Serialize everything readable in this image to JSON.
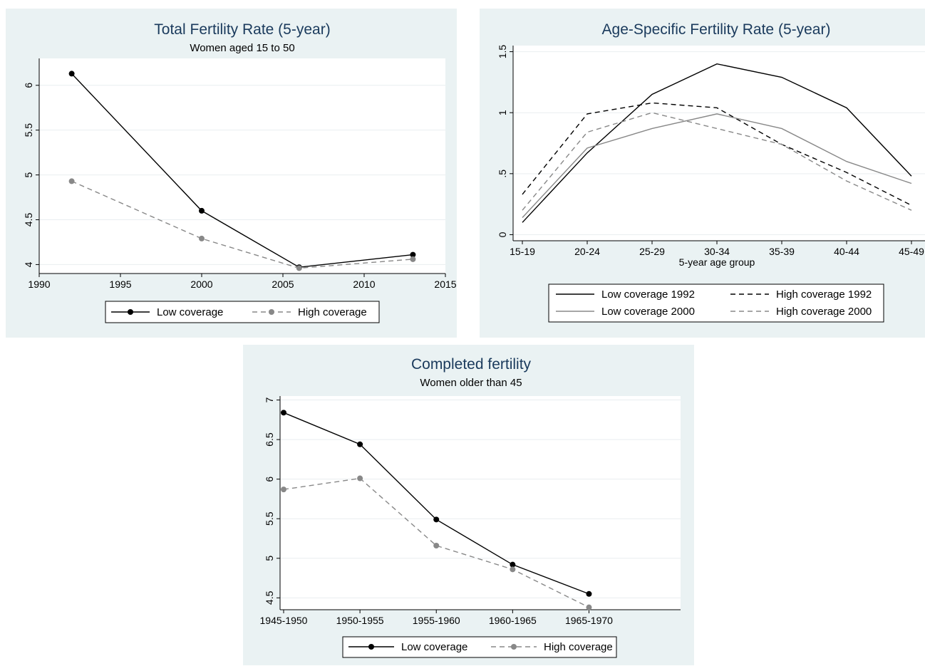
{
  "chart_data": [
    {
      "type": "line",
      "title": "Total Fertility Rate (5-year)",
      "subtitle": "Women aged 15 to 50",
      "xlabel": "",
      "ylabel": "",
      "xlim": [
        1990,
        2015
      ],
      "ylim": [
        3.9,
        6.3
      ],
      "xticks": [
        1990,
        1995,
        2000,
        2005,
        2010,
        2015
      ],
      "yticks": [
        4,
        4.5,
        5,
        5.5,
        6
      ],
      "ytick_labels": [
        "4",
        "4.5",
        "5",
        "5.5",
        "6"
      ],
      "grid": true,
      "legend_position": "bottom",
      "series": [
        {
          "name": "Low coverage",
          "x": [
            1992,
            2000,
            2006,
            2013
          ],
          "y": [
            6.13,
            4.6,
            3.97,
            4.11
          ],
          "color": "#000000",
          "dash": "solid",
          "markers": true
        },
        {
          "name": "High coverage",
          "x": [
            1992,
            2000,
            2006,
            2013
          ],
          "y": [
            4.93,
            4.29,
            3.96,
            4.06
          ],
          "color": "#888888",
          "dash": "dashed",
          "markers": true
        }
      ]
    },
    {
      "type": "line",
      "title": "Age-Specific Fertility Rate (5-year)",
      "subtitle": "",
      "xlabel": "5-year age group",
      "ylabel": "",
      "categories": [
        "15-19",
        "20-24",
        "25-29",
        "30-34",
        "35-39",
        "40-44",
        "45-49"
      ],
      "ylim": [
        -0.05,
        1.55
      ],
      "yticks": [
        0,
        0.5,
        1,
        1.5
      ],
      "ytick_labels": [
        "0",
        ".5",
        "1",
        "1.5"
      ],
      "grid": true,
      "legend_position": "bottom",
      "series": [
        {
          "name": "Low coverage 1992",
          "values": [
            0.1,
            0.67,
            1.15,
            1.4,
            1.29,
            1.04,
            0.48
          ],
          "color": "#000000",
          "dash": "solid"
        },
        {
          "name": "High coverage 1992",
          "values": [
            0.33,
            0.99,
            1.08,
            1.04,
            0.74,
            0.51,
            0.24
          ],
          "color": "#000000",
          "dash": "dashed"
        },
        {
          "name": "Low coverage 2000",
          "values": [
            0.14,
            0.71,
            0.87,
            0.99,
            0.87,
            0.6,
            0.42
          ],
          "color": "#888888",
          "dash": "solid"
        },
        {
          "name": "High coverage 2000",
          "values": [
            0.2,
            0.84,
            1.0,
            0.87,
            0.74,
            0.44,
            0.2
          ],
          "color": "#888888",
          "dash": "dashed"
        }
      ]
    },
    {
      "type": "line",
      "title": "Completed fertility",
      "subtitle": "Women older than 45",
      "xlabel": "",
      "ylabel": "",
      "categories": [
        "1945-1950",
        "1950-1955",
        "1955-1960",
        "1960-1965",
        "1965-1970"
      ],
      "ylim": [
        4.35,
        7.05
      ],
      "yticks": [
        4.5,
        5,
        5.5,
        6,
        6.5,
        7
      ],
      "ytick_labels": [
        "4.5",
        "5",
        "5.5",
        "6",
        "6.5",
        "7"
      ],
      "grid": true,
      "legend_position": "bottom",
      "series": [
        {
          "name": "Low coverage",
          "values": [
            6.84,
            6.44,
            5.49,
            4.92,
            4.55
          ],
          "color": "#000000",
          "dash": "solid",
          "markers": true
        },
        {
          "name": "High coverage",
          "values": [
            5.87,
            6.01,
            5.16,
            4.86,
            4.38
          ],
          "color": "#888888",
          "dash": "dashed",
          "markers": true
        }
      ]
    }
  ]
}
